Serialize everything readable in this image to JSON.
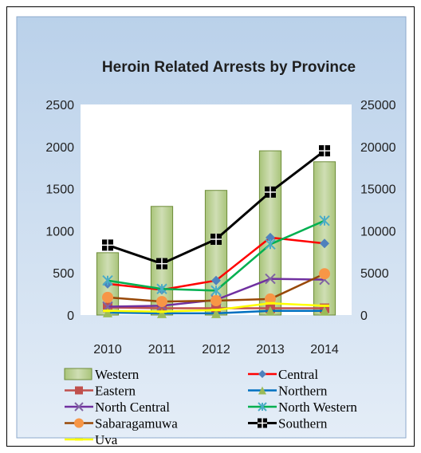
{
  "chart_data": {
    "type": "bar+line",
    "title": "Heroin Related Arrests by Province",
    "categories": [
      "2010",
      "2011",
      "2012",
      "2013",
      "2014"
    ],
    "left_axis": {
      "ylim": [
        0,
        2500
      ],
      "ticks": [
        "0",
        "500",
        "1000",
        "1500",
        "2000",
        "2500"
      ]
    },
    "right_axis": {
      "ylim": [
        0,
        25000
      ],
      "ticks": [
        "0",
        "5000",
        "10000",
        "15000",
        "20000",
        "25000"
      ]
    },
    "grid": false,
    "legend_position": "bottom",
    "series": [
      {
        "name": "Western",
        "type": "bar",
        "axis": "right",
        "color": "#b5cc8e",
        "marker": "none",
        "values": [
          7400,
          12900,
          14800,
          19500,
          18200
        ]
      },
      {
        "name": "Central",
        "type": "line",
        "axis": "left",
        "color": "#ff0000",
        "marker": "diamond",
        "marker_color": "#4f81bd",
        "values": [
          370,
          300,
          410,
          920,
          850
        ]
      },
      {
        "name": "Eastern",
        "type": "line",
        "axis": "left",
        "color": "#c0504d",
        "marker": "square",
        "marker_color": "#c0504d",
        "values": [
          90,
          80,
          80,
          80,
          80
        ]
      },
      {
        "name": "Northern",
        "type": "line",
        "axis": "left",
        "color": "#0070c0",
        "marker": "triangle",
        "marker_color": "#9bbb59",
        "values": [
          30,
          20,
          20,
          50,
          50
        ]
      },
      {
        "name": "North Central",
        "type": "line",
        "axis": "left",
        "color": "#7030a0",
        "marker": "x",
        "marker_color": "#8064a2",
        "values": [
          100,
          110,
          180,
          430,
          420
        ]
      },
      {
        "name": "North Western",
        "type": "line",
        "axis": "left",
        "color": "#00b050",
        "marker": "star",
        "marker_color": "#4bacc6",
        "values": [
          410,
          310,
          290,
          840,
          1120
        ]
      },
      {
        "name": "Sabaragamuwa",
        "type": "line",
        "axis": "left",
        "color": "#984807",
        "marker": "circle",
        "marker_color": "#f79646",
        "values": [
          210,
          160,
          170,
          190,
          490
        ]
      },
      {
        "name": "Southern",
        "type": "line",
        "axis": "left",
        "color": "#000000",
        "marker": "plus-square",
        "marker_color": "#000000",
        "values": [
          830,
          610,
          900,
          1460,
          1950
        ]
      },
      {
        "name": "Uva",
        "type": "line",
        "axis": "left",
        "color": "#ffff00",
        "marker": "dash",
        "marker_color": "#ffff00",
        "values": [
          50,
          40,
          60,
          140,
          110
        ]
      }
    ]
  }
}
